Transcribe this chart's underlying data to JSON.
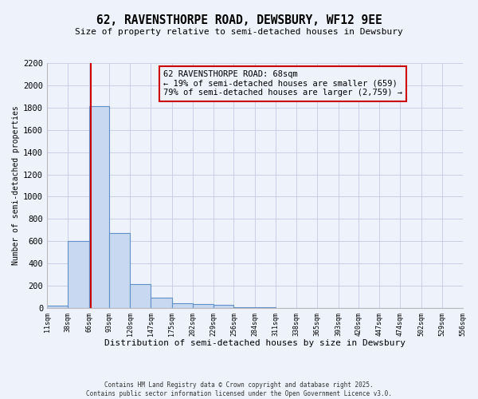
{
  "title_line1": "62, RAVENSTHORPE ROAD, DEWSBURY, WF12 9EE",
  "title_line2": "Size of property relative to semi-detached houses in Dewsbury",
  "xlabel": "Distribution of semi-detached houses by size in Dewsbury",
  "ylabel": "Number of semi-detached properties",
  "bin_edges": [
    11,
    38,
    66,
    93,
    120,
    147,
    175,
    202,
    229,
    256,
    284,
    311,
    338,
    365,
    393,
    420,
    447,
    474,
    502,
    529,
    556
  ],
  "bar_heights": [
    20,
    600,
    1810,
    670,
    215,
    95,
    42,
    35,
    25,
    8,
    5,
    3,
    2,
    1,
    1,
    0,
    0,
    0,
    0,
    0
  ],
  "bar_color": "#c8d8f0",
  "bar_edge_color": "#6090c8",
  "highlight_value": 68,
  "highlight_color": "#cc0000",
  "annotation_title": "62 RAVENSTHORPE ROAD: 68sqm",
  "annotation_line1": "← 19% of semi-detached houses are smaller (659)",
  "annotation_line2": "79% of semi-detached houses are larger (2,759) →",
  "annotation_box_color": "#cc0000",
  "ylim": [
    0,
    2200
  ],
  "yticks": [
    0,
    200,
    400,
    600,
    800,
    1000,
    1200,
    1400,
    1600,
    1800,
    2000,
    2200
  ],
  "footer_line1": "Contains HM Land Registry data © Crown copyright and database right 2025.",
  "footer_line2": "Contains public sector information licensed under the Open Government Licence v3.0.",
  "bg_color": "#eef2fb",
  "grid_color": "#c8cfe8"
}
